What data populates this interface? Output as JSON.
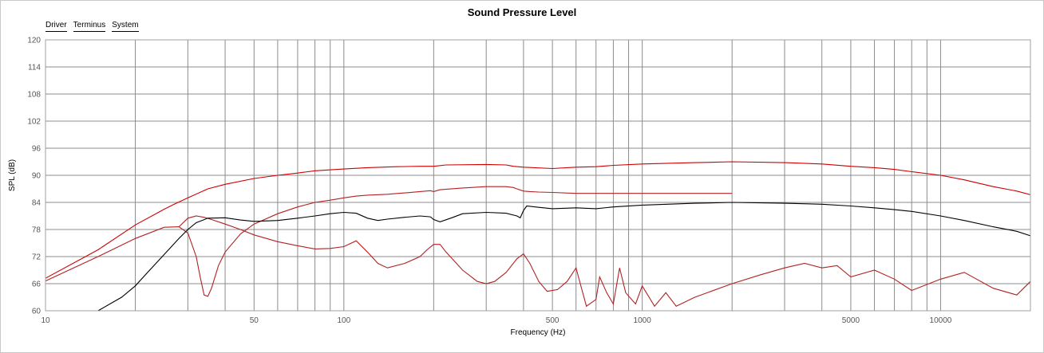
{
  "chart_data": {
    "type": "line",
    "title": "Sound Pressure Level",
    "xlabel": "Frequency (Hz)",
    "ylabel": "SPL (dB)",
    "x_scale": "log",
    "xlim": [
      10,
      20000
    ],
    "ylim": [
      60,
      120
    ],
    "yticks": [
      60,
      66,
      72,
      78,
      84,
      90,
      96,
      102,
      108,
      114,
      120
    ],
    "xtick_labels": [
      {
        "x": 10,
        "label": "10"
      },
      {
        "x": 50,
        "label": "50"
      },
      {
        "x": 100,
        "label": "100"
      },
      {
        "x": 500,
        "label": "500"
      },
      {
        "x": 1000,
        "label": "1000"
      },
      {
        "x": 5000,
        "label": "5000"
      },
      {
        "x": 10000,
        "label": "10000"
      }
    ],
    "grid": true,
    "legend_position": "top-left",
    "series": [
      {
        "name": "Driver",
        "color": "#cc0000",
        "points": [
          [
            10,
            67.2
          ],
          [
            15,
            73.5
          ],
          [
            20,
            79
          ],
          [
            25,
            82.5
          ],
          [
            27,
            83.6
          ],
          [
            30,
            85.0
          ],
          [
            35,
            87.0
          ],
          [
            40,
            88.0
          ],
          [
            50,
            89.3
          ],
          [
            60,
            90.0
          ],
          [
            70,
            90.5
          ],
          [
            80,
            91.0
          ],
          [
            100,
            91.4
          ],
          [
            120,
            91.7
          ],
          [
            150,
            91.9
          ],
          [
            180,
            92.0
          ],
          [
            200,
            92.0
          ],
          [
            220,
            92.3
          ],
          [
            300,
            92.4
          ],
          [
            350,
            92.3
          ],
          [
            370,
            92.0
          ],
          [
            400,
            91.8
          ],
          [
            500,
            91.5
          ],
          [
            600,
            91.8
          ],
          [
            700,
            91.9
          ],
          [
            800,
            92.2
          ],
          [
            1000,
            92.5
          ],
          [
            1500,
            92.8
          ],
          [
            2000,
            93.0
          ],
          [
            3000,
            92.8
          ],
          [
            4000,
            92.5
          ],
          [
            5000,
            92.0
          ],
          [
            6000,
            91.7
          ],
          [
            7000,
            91.3
          ],
          [
            8000,
            90.8
          ],
          [
            10000,
            90.0
          ],
          [
            12000,
            89.0
          ],
          [
            15000,
            87.5
          ],
          [
            18000,
            86.5
          ],
          [
            20000,
            85.7
          ]
        ]
      },
      {
        "name": "Terminus",
        "color": "#b22222",
        "points": [
          [
            10,
            66.6
          ],
          [
            15,
            72
          ],
          [
            20,
            76
          ],
          [
            25,
            78.5
          ],
          [
            28,
            78.6
          ],
          [
            30,
            77.2
          ],
          [
            32,
            72
          ],
          [
            33,
            67.5
          ],
          [
            34,
            63.5
          ],
          [
            35,
            63.2
          ],
          [
            36,
            65
          ],
          [
            38,
            70
          ],
          [
            40,
            73
          ],
          [
            45,
            77
          ],
          [
            50,
            79.2
          ],
          [
            60,
            81.5
          ],
          [
            70,
            83
          ],
          [
            80,
            84
          ],
          [
            90,
            84.5
          ],
          [
            100,
            85.0
          ],
          [
            110,
            85.4
          ],
          [
            120,
            85.6
          ],
          [
            140,
            85.8
          ],
          [
            160,
            86.1
          ],
          [
            180,
            86.4
          ],
          [
            195,
            86.6
          ],
          [
            200,
            86.4
          ],
          [
            210,
            86.8
          ],
          [
            250,
            87.2
          ],
          [
            300,
            87.5
          ],
          [
            350,
            87.5
          ],
          [
            370,
            87.3
          ],
          [
            380,
            87.0
          ],
          [
            400,
            86.5
          ],
          [
            420,
            86.4
          ],
          [
            450,
            86.3
          ],
          [
            500,
            86.2
          ],
          [
            600,
            86.0
          ],
          [
            700,
            86.0
          ],
          [
            800,
            86.0
          ],
          [
            1000,
            86.0
          ],
          [
            2000,
            86.0
          ]
        ]
      },
      {
        "name": "System",
        "color": "#000000",
        "points": [
          [
            15,
            60
          ],
          [
            18,
            63
          ],
          [
            20,
            65.5
          ],
          [
            22,
            68.5
          ],
          [
            25,
            72.5
          ],
          [
            28,
            76
          ],
          [
            30,
            78
          ],
          [
            32,
            79.5
          ],
          [
            35,
            80.5
          ],
          [
            40,
            80.6
          ],
          [
            45,
            80.1
          ],
          [
            50,
            79.8
          ],
          [
            60,
            80
          ],
          [
            70,
            80.5
          ],
          [
            80,
            81
          ],
          [
            90,
            81.5
          ],
          [
            100,
            81.8
          ],
          [
            110,
            81.6
          ],
          [
            120,
            80.5
          ],
          [
            130,
            80.0
          ],
          [
            140,
            80.3
          ],
          [
            160,
            80.7
          ],
          [
            180,
            81.0
          ],
          [
            195,
            80.8
          ],
          [
            200,
            80.2
          ],
          [
            210,
            79.7
          ],
          [
            230,
            80.6
          ],
          [
            250,
            81.5
          ],
          [
            300,
            81.8
          ],
          [
            350,
            81.6
          ],
          [
            380,
            81.0
          ],
          [
            390,
            80.6
          ],
          [
            400,
            82.2
          ],
          [
            410,
            83.2
          ],
          [
            450,
            82.9
          ],
          [
            500,
            82.6
          ],
          [
            600,
            82.8
          ],
          [
            700,
            82.6
          ],
          [
            800,
            83.0
          ],
          [
            1000,
            83.4
          ],
          [
            1500,
            83.8
          ],
          [
            2000,
            84.0
          ],
          [
            3000,
            83.8
          ],
          [
            4000,
            83.6
          ],
          [
            5000,
            83.2
          ],
          [
            6000,
            82.8
          ],
          [
            7000,
            82.4
          ],
          [
            8000,
            82.0
          ],
          [
            10000,
            81.0
          ],
          [
            12000,
            80.0
          ],
          [
            15000,
            78.6
          ],
          [
            18000,
            77.6
          ],
          [
            20000,
            76.6
          ]
        ]
      },
      {
        "name": "",
        "color": "#b22222",
        "note_scope": "fourth trace (no legend entry)",
        "points": [
          [
            28,
            78.6
          ],
          [
            30,
            80.5
          ],
          [
            32,
            81.0
          ],
          [
            34,
            80.7
          ],
          [
            36,
            80.2
          ],
          [
            40,
            79.2
          ],
          [
            45,
            78.0
          ],
          [
            50,
            76.8
          ],
          [
            60,
            75.3
          ],
          [
            70,
            74.4
          ],
          [
            80,
            73.7
          ],
          [
            90,
            73.8
          ],
          [
            100,
            74.2
          ],
          [
            110,
            75.5
          ],
          [
            120,
            73.0
          ],
          [
            130,
            70.5
          ],
          [
            140,
            69.5
          ],
          [
            160,
            70.5
          ],
          [
            180,
            72.0
          ],
          [
            190,
            73.5
          ],
          [
            200,
            74.7
          ],
          [
            210,
            74.7
          ],
          [
            220,
            73.0
          ],
          [
            250,
            69.0
          ],
          [
            280,
            66.5
          ],
          [
            300,
            66.0
          ],
          [
            320,
            66.5
          ],
          [
            350,
            68.5
          ],
          [
            380,
            71.5
          ],
          [
            400,
            72.6
          ],
          [
            420,
            70.5
          ],
          [
            450,
            66.5
          ],
          [
            480,
            64.3
          ],
          [
            520,
            64.7
          ],
          [
            560,
            66.5
          ],
          [
            600,
            69.5
          ],
          [
            620,
            66.0
          ],
          [
            650,
            61.0
          ],
          [
            700,
            62.5
          ],
          [
            720,
            67.5
          ],
          [
            760,
            64.0
          ],
          [
            800,
            61.5
          ],
          [
            840,
            69.5
          ],
          [
            880,
            64.0
          ],
          [
            950,
            61.5
          ],
          [
            1000,
            65.5
          ],
          [
            1100,
            61.0
          ],
          [
            1200,
            64.0
          ],
          [
            1300,
            61.0
          ],
          [
            1500,
            63.0
          ],
          [
            2000,
            66.0
          ],
          [
            2500,
            68.0
          ],
          [
            3000,
            69.5
          ],
          [
            3500,
            70.5
          ],
          [
            4000,
            69.5
          ],
          [
            4500,
            70.0
          ],
          [
            5000,
            67.5
          ],
          [
            6000,
            69.0
          ],
          [
            7000,
            67.0
          ],
          [
            8000,
            64.5
          ],
          [
            10000,
            67.0
          ],
          [
            12000,
            68.5
          ],
          [
            15000,
            65.0
          ],
          [
            18000,
            63.5
          ],
          [
            20000,
            66.5
          ]
        ]
      }
    ]
  }
}
